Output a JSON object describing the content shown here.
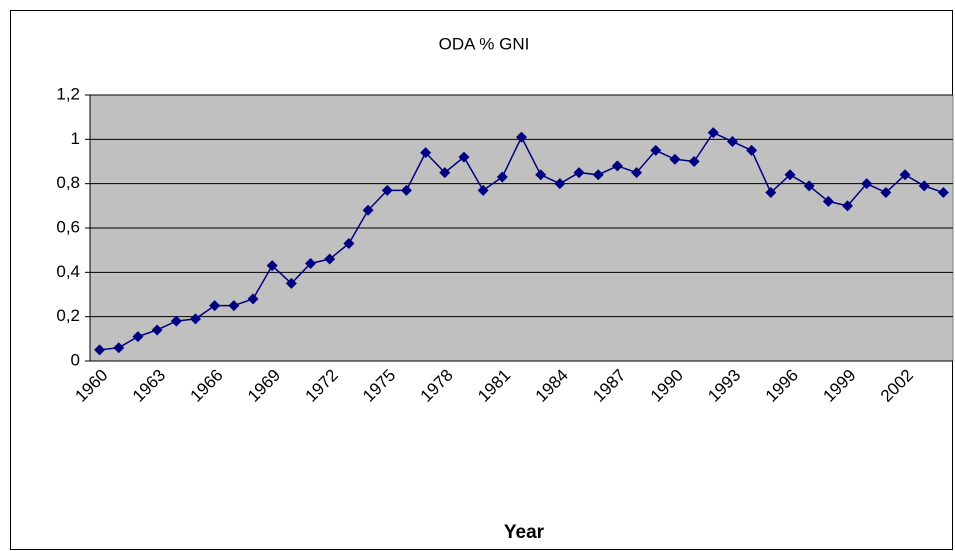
{
  "chart_data": {
    "type": "line",
    "title": "ODA % GNI",
    "x_label": "Year",
    "categories": [
      "1960",
      null,
      null,
      "1963",
      null,
      null,
      "1966",
      null,
      null,
      "1969",
      null,
      null,
      "1972",
      null,
      null,
      "1975",
      null,
      null,
      "1978",
      null,
      null,
      "1981",
      null,
      null,
      "1984",
      null,
      null,
      "1987",
      null,
      null,
      "1990",
      null,
      null,
      "1993",
      null,
      null,
      "1996",
      null,
      null,
      "1999",
      null,
      null,
      "2002",
      null,
      null
    ],
    "values": [
      0.05,
      0.06,
      0.11,
      0.14,
      0.18,
      0.19,
      0.25,
      0.25,
      0.28,
      0.43,
      0.35,
      0.44,
      0.46,
      0.53,
      0.68,
      0.77,
      0.77,
      0.94,
      0.85,
      0.92,
      0.77,
      0.83,
      1.01,
      0.84,
      0.8,
      0.85,
      0.84,
      0.88,
      0.85,
      0.95,
      0.91,
      0.9,
      1.03,
      0.99,
      0.95,
      0.76,
      0.84,
      0.79,
      0.72,
      0.7,
      0.8,
      0.76,
      0.84,
      0.79,
      0.76
    ],
    "color": "#000080",
    "ylim": [
      0,
      1.2
    ],
    "yticks": [
      0,
      {
        "value": 0.2,
        "label": "0,2"
      },
      {
        "value": 0.4,
        "label": "0,4"
      },
      {
        "value": 0.6,
        "label": "0,6"
      },
      {
        "value": 0.8,
        "label": "0,8"
      },
      1,
      {
        "value": 1.2,
        "label": "1,2"
      }
    ],
    "grid": true
  }
}
